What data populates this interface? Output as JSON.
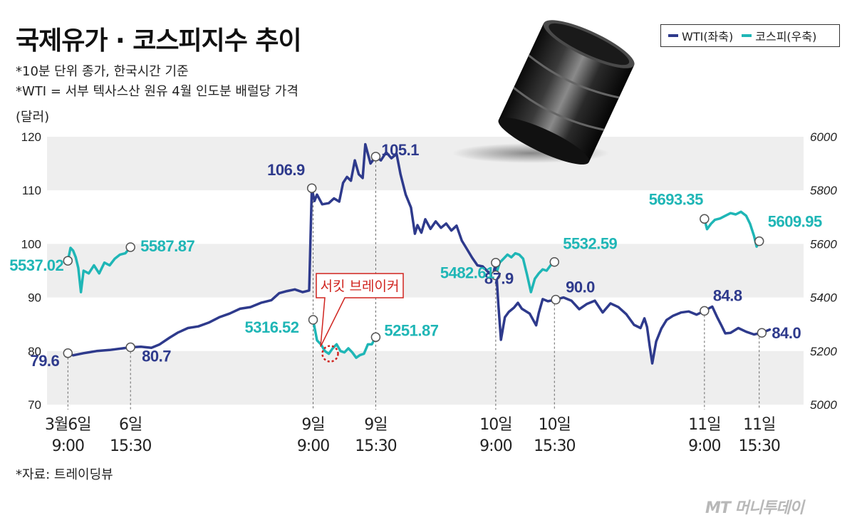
{
  "header": {
    "title": "국제유가 · 코스피지수 추이",
    "note1": "*10분 단위 종가, 한국시간 기준",
    "note2": "*WTI = 서부 텍사스산 원유 4월 인도분 배럴당 가격",
    "unit": "(달러)",
    "source": "*자료: 트레이딩뷰"
  },
  "brand": "MT 머니투데이",
  "colors": {
    "wti": "#2e3a8c",
    "kospi": "#1fb6b6",
    "band": "#eeeeee",
    "callout": "#d0241f"
  },
  "legend": {
    "wti": "WTI(좌축)",
    "kospi": "코스피(우축)"
  },
  "callout": {
    "label": "서킷 브레이커"
  },
  "chart_data": {
    "type": "line",
    "x": [
      "3월6일 9:00",
      "6일 15:30",
      "9일 9:00",
      "9일 15:30",
      "10일 9:00",
      "10일 15:30",
      "11일 9:00",
      "11일 15:30"
    ],
    "y_left": {
      "ylim": [
        70,
        120
      ],
      "ticks": [
        "70",
        "80",
        "90",
        "100",
        "110",
        "120"
      ]
    },
    "y_right": {
      "ylim": [
        5000,
        6000
      ],
      "ticks": [
        "5000",
        "5200",
        "5400",
        "5600",
        "5800",
        "6000"
      ]
    },
    "series": [
      {
        "name": "WTI(좌축)",
        "axis": "left",
        "labels": [
          "79.6",
          "80.7",
          "106.9",
          "105.1",
          "87.9",
          "90.0",
          "84.8",
          "84.0"
        ],
        "values": [
          [
            -2.4,
            79.6
          ],
          [
            -2.2,
            79.2
          ],
          [
            -1.8,
            79.6
          ],
          [
            -1.3,
            80.0
          ],
          [
            -0.8,
            80.2
          ],
          [
            -0.3,
            80.5
          ],
          [
            0,
            80.7
          ],
          [
            0.4,
            80.8
          ],
          [
            0.8,
            80.6
          ],
          [
            1.1,
            81.2
          ],
          [
            1.5,
            82.5
          ],
          [
            1.8,
            83.4
          ],
          [
            2.2,
            84.3
          ],
          [
            2.6,
            84.6
          ],
          [
            3.0,
            85.3
          ],
          [
            3.4,
            86.3
          ],
          [
            3.8,
            87.0
          ],
          [
            4.2,
            87.9
          ],
          [
            4.6,
            88.2
          ],
          [
            5.0,
            89.0
          ],
          [
            5.4,
            89.5
          ],
          [
            5.7,
            90.8
          ],
          [
            6.0,
            91.2
          ],
          [
            6.3,
            91.5
          ],
          [
            6.6,
            91.0
          ],
          [
            6.85,
            91.3
          ],
          [
            6.95,
            110.4
          ],
          [
            7.05,
            108.0
          ],
          [
            7.15,
            109.2
          ],
          [
            7.35,
            107.4
          ],
          [
            7.6,
            107.6
          ],
          [
            7.8,
            108.5
          ],
          [
            8.0,
            107.9
          ],
          [
            8.15,
            111.4
          ],
          [
            8.3,
            112.5
          ],
          [
            8.45,
            111.8
          ],
          [
            8.6,
            115.6
          ],
          [
            8.75,
            113.0
          ],
          [
            8.9,
            112.3
          ],
          [
            9.0,
            118.6
          ],
          [
            9.2,
            115.0
          ],
          [
            9.4,
            116.3
          ],
          [
            9.6,
            115.6
          ],
          [
            9.8,
            117.1
          ],
          [
            10.0,
            116.0
          ],
          [
            10.2,
            116.8
          ],
          [
            10.35,
            113.0
          ],
          [
            10.55,
            109.2
          ],
          [
            10.75,
            106.8
          ],
          [
            10.9,
            101.9
          ],
          [
            11.0,
            103.5
          ],
          [
            11.15,
            102.1
          ],
          [
            11.3,
            104.6
          ],
          [
            11.5,
            102.8
          ],
          [
            11.7,
            104.2
          ],
          [
            11.9,
            103.0
          ],
          [
            12.1,
            103.8
          ],
          [
            12.3,
            102.5
          ],
          [
            12.5,
            103.4
          ],
          [
            12.7,
            100.6
          ],
          [
            12.9,
            99.0
          ],
          [
            13.1,
            97.4
          ],
          [
            13.3,
            96.0
          ],
          [
            13.5,
            95.8
          ],
          [
            13.7,
            94.8
          ],
          [
            13.9,
            94.2
          ],
          [
            14.0,
            96.5
          ],
          [
            14.1,
            88.8
          ],
          [
            14.2,
            82.1
          ],
          [
            14.35,
            86.3
          ],
          [
            14.5,
            87.3
          ],
          [
            14.7,
            88.1
          ],
          [
            14.85,
            89.0
          ],
          [
            15.0,
            87.9
          ],
          [
            15.3,
            87.0
          ],
          [
            15.55,
            84.8
          ],
          [
            15.65,
            87.1
          ],
          [
            15.8,
            89.7
          ],
          [
            16.0,
            89.3
          ],
          [
            16.3,
            89.6
          ],
          [
            16.6,
            90.0
          ],
          [
            16.9,
            89.4
          ],
          [
            17.2,
            87.8
          ],
          [
            17.5,
            88.8
          ],
          [
            17.8,
            89.4
          ],
          [
            18.1,
            87.2
          ],
          [
            18.4,
            88.9
          ],
          [
            18.7,
            88.2
          ],
          [
            19.0,
            86.9
          ],
          [
            19.3,
            84.9
          ],
          [
            19.55,
            84.3
          ],
          [
            19.7,
            86.1
          ],
          [
            19.8,
            84.5
          ],
          [
            19.9,
            81.0
          ],
          [
            20.0,
            77.7
          ],
          [
            20.15,
            81.8
          ],
          [
            20.35,
            84.2
          ],
          [
            20.55,
            85.8
          ],
          [
            20.8,
            86.6
          ],
          [
            21.1,
            87.2
          ],
          [
            21.4,
            87.4
          ],
          [
            21.7,
            86.8
          ],
          [
            22.0,
            87.5
          ],
          [
            22.3,
            88.3
          ],
          [
            22.5,
            86.2
          ],
          [
            22.65,
            84.8
          ],
          [
            22.8,
            83.3
          ],
          [
            23.0,
            83.4
          ],
          [
            23.3,
            84.3
          ],
          [
            23.6,
            83.6
          ],
          [
            23.9,
            83.1
          ],
          [
            24.2,
            83.4
          ],
          [
            24.5,
            84.0
          ]
        ]
      },
      {
        "name": "코스피(우축)",
        "axis": "right",
        "labels": [
          "5537.02",
          "5587.87",
          "5316.52",
          "5251.87",
          "5482.61",
          "5532.59",
          "5693.35",
          "5609.95"
        ],
        "values": [
          [
            -2.4,
            5537.02
          ],
          [
            -2.3,
            5585
          ],
          [
            -2.2,
            5575
          ],
          [
            -2.1,
            5550
          ],
          [
            -2.0,
            5510
          ],
          [
            -1.9,
            5420
          ],
          [
            -1.8,
            5500
          ],
          [
            -1.6,
            5490
          ],
          [
            -1.4,
            5520
          ],
          [
            -1.2,
            5490
          ],
          [
            -1.0,
            5530
          ],
          [
            -0.8,
            5520
          ],
          [
            -0.6,
            5545
          ],
          [
            -0.4,
            5560
          ],
          [
            -0.2,
            5565
          ],
          [
            0,
            5587.87
          ],
          [
            7.0,
            5316.52
          ],
          [
            7.15,
            5240
          ],
          [
            7.3,
            5225
          ],
          [
            7.45,
            5200
          ],
          [
            7.6,
            5190
          ],
          [
            7.75,
            5210
          ],
          [
            7.9,
            5225
          ],
          [
            8.05,
            5200
          ],
          [
            8.2,
            5195
          ],
          [
            8.35,
            5210
          ],
          [
            8.5,
            5195
          ],
          [
            8.65,
            5175
          ],
          [
            8.8,
            5185
          ],
          [
            8.95,
            5190
          ],
          [
            9.1,
            5225
          ],
          [
            9.25,
            5225
          ],
          [
            9.4,
            5251.87
          ],
          [
            14.0,
            5482.61
          ],
          [
            14.15,
            5530
          ],
          [
            14.3,
            5545
          ],
          [
            14.45,
            5560
          ],
          [
            14.6,
            5550
          ],
          [
            14.75,
            5565
          ],
          [
            14.9,
            5560
          ],
          [
            15.05,
            5545
          ],
          [
            15.2,
            5485
          ],
          [
            15.35,
            5420
          ],
          [
            15.5,
            5470
          ],
          [
            15.65,
            5490
          ],
          [
            15.8,
            5505
          ],
          [
            15.95,
            5500
          ],
          [
            16.1,
            5520
          ],
          [
            16.25,
            5532.59
          ],
          [
            22.0,
            5693.35
          ],
          [
            22.1,
            5655
          ],
          [
            22.25,
            5675
          ],
          [
            22.4,
            5690
          ],
          [
            22.6,
            5695
          ],
          [
            22.8,
            5705
          ],
          [
            23.0,
            5715
          ],
          [
            23.2,
            5710
          ],
          [
            23.4,
            5720
          ],
          [
            23.6,
            5705
          ],
          [
            23.75,
            5675
          ],
          [
            23.9,
            5630
          ],
          [
            24.0,
            5590
          ],
          [
            24.1,
            5609.95
          ]
        ]
      }
    ]
  }
}
